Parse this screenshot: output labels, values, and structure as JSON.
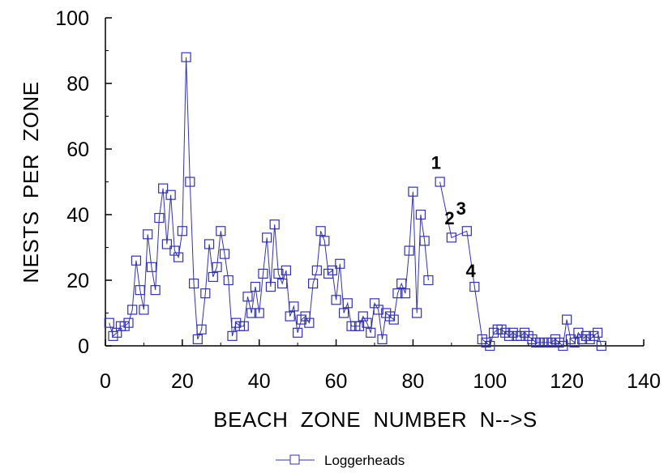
{
  "chart_data": {
    "type": "line",
    "title": "",
    "xlabel": "BEACH  ZONE  NUMBER  N-->S",
    "ylabel": "NESTS  PER  ZONE",
    "xlim": [
      0,
      140
    ],
    "ylim": [
      0,
      100
    ],
    "xticks": [
      0,
      20,
      40,
      60,
      80,
      100,
      120,
      140
    ],
    "yticks": [
      0,
      20,
      40,
      60,
      80,
      100
    ],
    "grid": false,
    "legend_position": "bottom-center",
    "colors": {
      "series": "#3333aa",
      "marker_stroke": "#3333aa"
    },
    "series": [
      {
        "name": "Loggerheads",
        "marker": "open-square",
        "x": [
          1,
          2,
          3,
          4,
          5,
          6,
          7,
          8,
          9,
          10,
          11,
          12,
          13,
          14,
          15,
          16,
          17,
          18,
          19,
          20,
          21,
          22,
          23,
          24,
          25,
          26,
          27,
          28,
          29,
          30,
          31,
          32,
          33,
          34,
          35,
          36,
          37,
          38,
          39,
          40,
          41,
          42,
          43,
          44,
          45,
          46,
          47,
          48,
          49,
          50,
          51,
          52,
          53,
          54,
          55,
          56,
          57,
          58,
          59,
          60,
          61,
          62,
          63,
          64,
          65,
          66,
          67,
          68,
          69,
          70,
          71,
          72,
          73,
          74,
          75,
          76,
          77,
          78,
          79,
          80,
          81,
          82,
          83,
          84,
          85
        ],
        "values": [
          7,
          3,
          4,
          6,
          6,
          7,
          11,
          26,
          17,
          11,
          34,
          24,
          17,
          39,
          48,
          31,
          46,
          29,
          27,
          35,
          88,
          50,
          19,
          2,
          5,
          16,
          31,
          21,
          24,
          35,
          28,
          20,
          3,
          7,
          6,
          6,
          15,
          10,
          18,
          10,
          22,
          33,
          18,
          37,
          22,
          19,
          23,
          9,
          12,
          4,
          8,
          9,
          7,
          19,
          23,
          35,
          32,
          22,
          23,
          14,
          25,
          10,
          13,
          6,
          6,
          6,
          9,
          7,
          4,
          13,
          11,
          2,
          10,
          9,
          8,
          16,
          19,
          16,
          29,
          47,
          10,
          40,
          32,
          20,
          null
        ]
      },
      {
        "name": "Loggerheads",
        "marker": "open-square",
        "x": [
          87,
          90,
          94,
          96,
          98,
          99,
          100,
          101,
          102,
          103,
          104,
          105,
          106,
          107,
          108,
          109,
          110,
          111,
          112,
          113,
          114,
          115,
          116,
          117,
          118,
          119,
          120,
          121,
          122,
          123,
          124,
          125,
          126,
          127,
          128,
          129
        ],
        "values": [
          50,
          33,
          35,
          18,
          2,
          1,
          0,
          4,
          5,
          5,
          4,
          3,
          4,
          3,
          3,
          4,
          3,
          2,
          1,
          1,
          1,
          1,
          1,
          2,
          1,
          0,
          8,
          2,
          1,
          4,
          2,
          3,
          2,
          3,
          4,
          0
        ]
      }
    ],
    "annotations": [
      {
        "text": "1",
        "x": 86,
        "y": 54
      },
      {
        "text": "2",
        "x": 89.5,
        "y": 37
      },
      {
        "text": "3",
        "x": 92.5,
        "y": 40
      },
      {
        "text": "4",
        "x": 95,
        "y": 21
      }
    ]
  }
}
